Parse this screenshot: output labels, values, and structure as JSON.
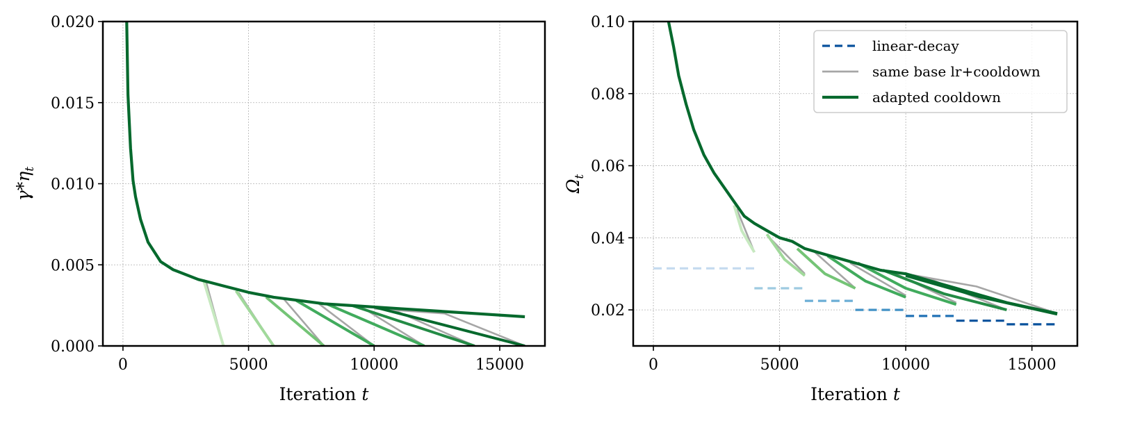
{
  "chart_data": [
    {
      "type": "line",
      "xlabel": "Iteration t",
      "ylabel": "γ*η_t",
      "xlim": [
        -800,
        16800
      ],
      "ylim": [
        0,
        0.02
      ],
      "xticks": [
        0,
        5000,
        10000,
        15000
      ],
      "xtick_labels": [
        "0",
        "5000",
        "10000",
        "15000"
      ],
      "yticks": [
        0,
        0.005,
        0.01,
        0.015,
        0.02
      ],
      "ytick_labels": [
        "0.000",
        "0.005",
        "0.010",
        "0.015",
        "0.020"
      ],
      "grid": true,
      "main_curve": {
        "color": "#06692d",
        "x": [
          150,
          200,
          300,
          400,
          500,
          700,
          1000,
          1500,
          2000,
          2500,
          3000,
          3500,
          4000,
          5000,
          6000,
          7000,
          8000,
          9000,
          10000,
          11000,
          12000,
          13000,
          14000,
          16000
        ],
        "y": [
          0.02,
          0.0155,
          0.0122,
          0.0102,
          0.0092,
          0.0078,
          0.0064,
          0.0052,
          0.0047,
          0.0044,
          0.0041,
          0.0039,
          0.0037,
          0.0033,
          0.003,
          0.0028,
          0.0026,
          0.0025,
          0.0024,
          0.0023,
          0.0022,
          0.0021,
          0.002,
          0.0018
        ]
      },
      "gray_cooldowns": [
        {
          "x": [
            3300,
            4000
          ],
          "y": [
            0.004,
            0
          ]
        },
        {
          "x": [
            4600,
            6000
          ],
          "y": [
            0.0033,
            0
          ]
        },
        {
          "x": [
            6400,
            8000
          ],
          "y": [
            0.0029,
            0
          ]
        },
        {
          "x": [
            7800,
            10000
          ],
          "y": [
            0.0026,
            0
          ]
        },
        {
          "x": [
            9600,
            12000
          ],
          "y": [
            0.0023,
            0
          ]
        },
        {
          "x": [
            10800,
            14000
          ],
          "y": [
            0.0022,
            0
          ]
        },
        {
          "x": [
            10000,
            12800,
            16000
          ],
          "y": [
            0.0023,
            0.002,
            0
          ]
        }
      ],
      "green_cooldowns": [
        {
          "x": [
            3200,
            4000
          ],
          "y": [
            0.0041,
            0
          ],
          "color": "#c7e9c0"
        },
        {
          "x": [
            4500,
            6000
          ],
          "y": [
            0.0034,
            0
          ],
          "color": "#a1d99b"
        },
        {
          "x": [
            5700,
            8000
          ],
          "y": [
            0.003,
            0
          ],
          "color": "#74c476"
        },
        {
          "x": [
            6900,
            10000
          ],
          "y": [
            0.0028,
            0
          ],
          "color": "#41ab5d"
        },
        {
          "x": [
            8100,
            12000
          ],
          "y": [
            0.0026,
            0
          ],
          "color": "#41ab5d"
        },
        {
          "x": [
            9100,
            14000
          ],
          "y": [
            0.0025,
            0
          ],
          "color": "#238b45"
        },
        {
          "x": [
            10000,
            16000
          ],
          "y": [
            0.0024,
            0
          ],
          "color": "#06692d"
        }
      ]
    },
    {
      "type": "line",
      "xlabel": "Iteration t",
      "ylabel": "Ω_t",
      "xlim": [
        -800,
        16800
      ],
      "ylim": [
        0.01,
        0.1
      ],
      "xticks": [
        0,
        5000,
        10000,
        15000
      ],
      "xtick_labels": [
        "0",
        "5000",
        "10000",
        "15000"
      ],
      "yticks": [
        0.02,
        0.04,
        0.06,
        0.08,
        0.1
      ],
      "ytick_labels": [
        "0.02",
        "0.04",
        "0.06",
        "0.08",
        "0.10"
      ],
      "grid": true,
      "legend": {
        "placement": "top-right",
        "entries": [
          {
            "label": "linear-decay",
            "color": "#08519c",
            "style": "dashed"
          },
          {
            "label": "same base lr+cooldown",
            "color": "#a6a6a6",
            "style": "solid"
          },
          {
            "label": "adapted cooldown",
            "color": "#06692d",
            "style": "solid"
          }
        ]
      },
      "main_curve": {
        "color": "#06692d",
        "x": [
          600,
          800,
          1000,
          1300,
          1600,
          2000,
          2400,
          2800,
          3200,
          3600,
          4000,
          4500,
          5000,
          5500,
          6000,
          7000,
          8000,
          9000,
          10000,
          11000,
          12000,
          13000,
          14000,
          15000,
          16000
        ],
        "y": [
          0.1,
          0.093,
          0.085,
          0.077,
          0.07,
          0.063,
          0.058,
          0.054,
          0.05,
          0.046,
          0.044,
          0.042,
          0.04,
          0.039,
          0.037,
          0.035,
          0.033,
          0.031,
          0.03,
          0.028,
          0.026,
          0.024,
          0.022,
          0.0205,
          0.019
        ]
      },
      "linear_decay": [
        {
          "x": [
            0,
            4000
          ],
          "y": [
            0.0315,
            0.0315
          ],
          "color": "#c6dbef"
        },
        {
          "x": [
            4000,
            6000
          ],
          "y": [
            0.026,
            0.026
          ],
          "color": "#9ecae1"
        },
        {
          "x": [
            6000,
            8000
          ],
          "y": [
            0.0225,
            0.0225
          ],
          "color": "#6baed6"
        },
        {
          "x": [
            8000,
            10000
          ],
          "y": [
            0.02,
            0.02
          ],
          "color": "#4292c6"
        },
        {
          "x": [
            10000,
            12000
          ],
          "y": [
            0.0183,
            0.0183
          ],
          "color": "#2171b5"
        },
        {
          "x": [
            12000,
            14000
          ],
          "y": [
            0.017,
            0.017
          ],
          "color": "#08519c"
        },
        {
          "x": [
            14000,
            16000
          ],
          "y": [
            0.016,
            0.016
          ],
          "color": "#08519c"
        }
      ],
      "gray_cooldowns": [
        {
          "x": [
            3300,
            4000
          ],
          "y": [
            0.048,
            0.036
          ]
        },
        {
          "x": [
            4600,
            6000
          ],
          "y": [
            0.04,
            0.03
          ]
        },
        {
          "x": [
            6400,
            8000
          ],
          "y": [
            0.036,
            0.026
          ]
        },
        {
          "x": [
            7800,
            10000
          ],
          "y": [
            0.033,
            0.024
          ]
        },
        {
          "x": [
            9600,
            12000
          ],
          "y": [
            0.03,
            0.022
          ]
        },
        {
          "x": [
            10800,
            14000
          ],
          "y": [
            0.029,
            0.02
          ]
        },
        {
          "x": [
            10000,
            12800,
            16000
          ],
          "y": [
            0.03,
            0.0265,
            0.019
          ]
        }
      ],
      "green_cooldowns": [
        {
          "x": [
            3200,
            3500,
            4000
          ],
          "y": [
            0.049,
            0.042,
            0.036
          ],
          "color": "#c7e9c0"
        },
        {
          "x": [
            4500,
            5200,
            6000
          ],
          "y": [
            0.041,
            0.034,
            0.0295
          ],
          "color": "#a1d99b"
        },
        {
          "x": [
            5700,
            6800,
            8000
          ],
          "y": [
            0.037,
            0.03,
            0.026
          ],
          "color": "#74c476"
        },
        {
          "x": [
            6900,
            8400,
            10000
          ],
          "y": [
            0.035,
            0.028,
            0.0235
          ],
          "color": "#41ab5d"
        },
        {
          "x": [
            8100,
            10000,
            12000
          ],
          "y": [
            0.033,
            0.026,
            0.0215
          ],
          "color": "#41ab5d"
        },
        {
          "x": [
            9100,
            11500,
            14000
          ],
          "y": [
            0.031,
            0.0245,
            0.02
          ],
          "color": "#238b45"
        },
        {
          "x": [
            10000,
            13000,
            16000
          ],
          "y": [
            0.0295,
            0.0235,
            0.0188
          ],
          "color": "#06692d"
        }
      ]
    }
  ]
}
